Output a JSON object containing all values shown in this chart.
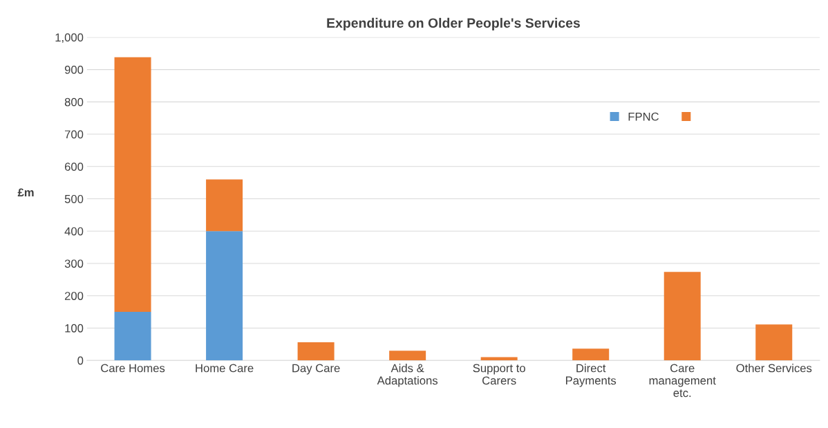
{
  "chart_data": {
    "type": "bar",
    "title": "Expenditure on Older People's Services",
    "ylabel": "£m",
    "categories": [
      "Care Homes",
      "Home Care",
      "Day Care",
      "Aids &\nAdaptations",
      "Support to\nCarers",
      "Direct\nPayments",
      "Care\nmanagement\netc.",
      "Other Services"
    ],
    "stacked": true,
    "series": [
      {
        "name": "FPNC",
        "color": "#5b9bd5",
        "values": [
          150,
          400,
          null,
          null,
          null,
          null,
          null,
          null
        ]
      },
      {
        "color": "#ed7d31",
        "values": [
          788,
          160,
          56,
          30,
          10,
          36,
          274,
          111
        ]
      }
    ],
    "ylim": [
      0,
      1000
    ],
    "yticks": [
      0,
      {
        "value": 100,
        "label": "100"
      },
      200,
      300,
      400,
      500,
      600,
      700,
      800,
      900,
      {
        "value": 1000,
        "label": "1,000"
      }
    ],
    "grid": "y",
    "legend": "top right"
  }
}
